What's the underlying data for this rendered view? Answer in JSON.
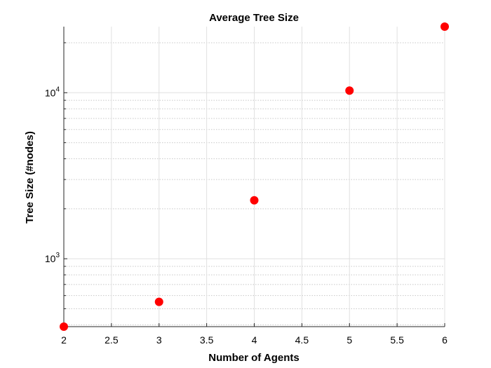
{
  "chart_data": {
    "type": "scatter",
    "title": "Average Tree Size",
    "xlabel": "Number of Agents",
    "ylabel": "Tree Size (#nodes)",
    "xlim": [
      2,
      6
    ],
    "ylim": [
      390,
      25000
    ],
    "yscale": "log",
    "x_ticks": [
      "2",
      "2.5",
      "3",
      "3.5",
      "4",
      "4.5",
      "5",
      "5.5",
      "6"
    ],
    "y_ticks": [
      {
        "value": 1000,
        "base": "10",
        "exp": "3"
      },
      {
        "value": 10000,
        "base": "10",
        "exp": "4"
      }
    ],
    "grid": true,
    "minor_grid": true,
    "series": [
      {
        "x": [
          2,
          3,
          4,
          5,
          6
        ],
        "y": [
          390,
          550,
          2250,
          10300,
          25000
        ],
        "color": "#ff0000"
      }
    ]
  }
}
